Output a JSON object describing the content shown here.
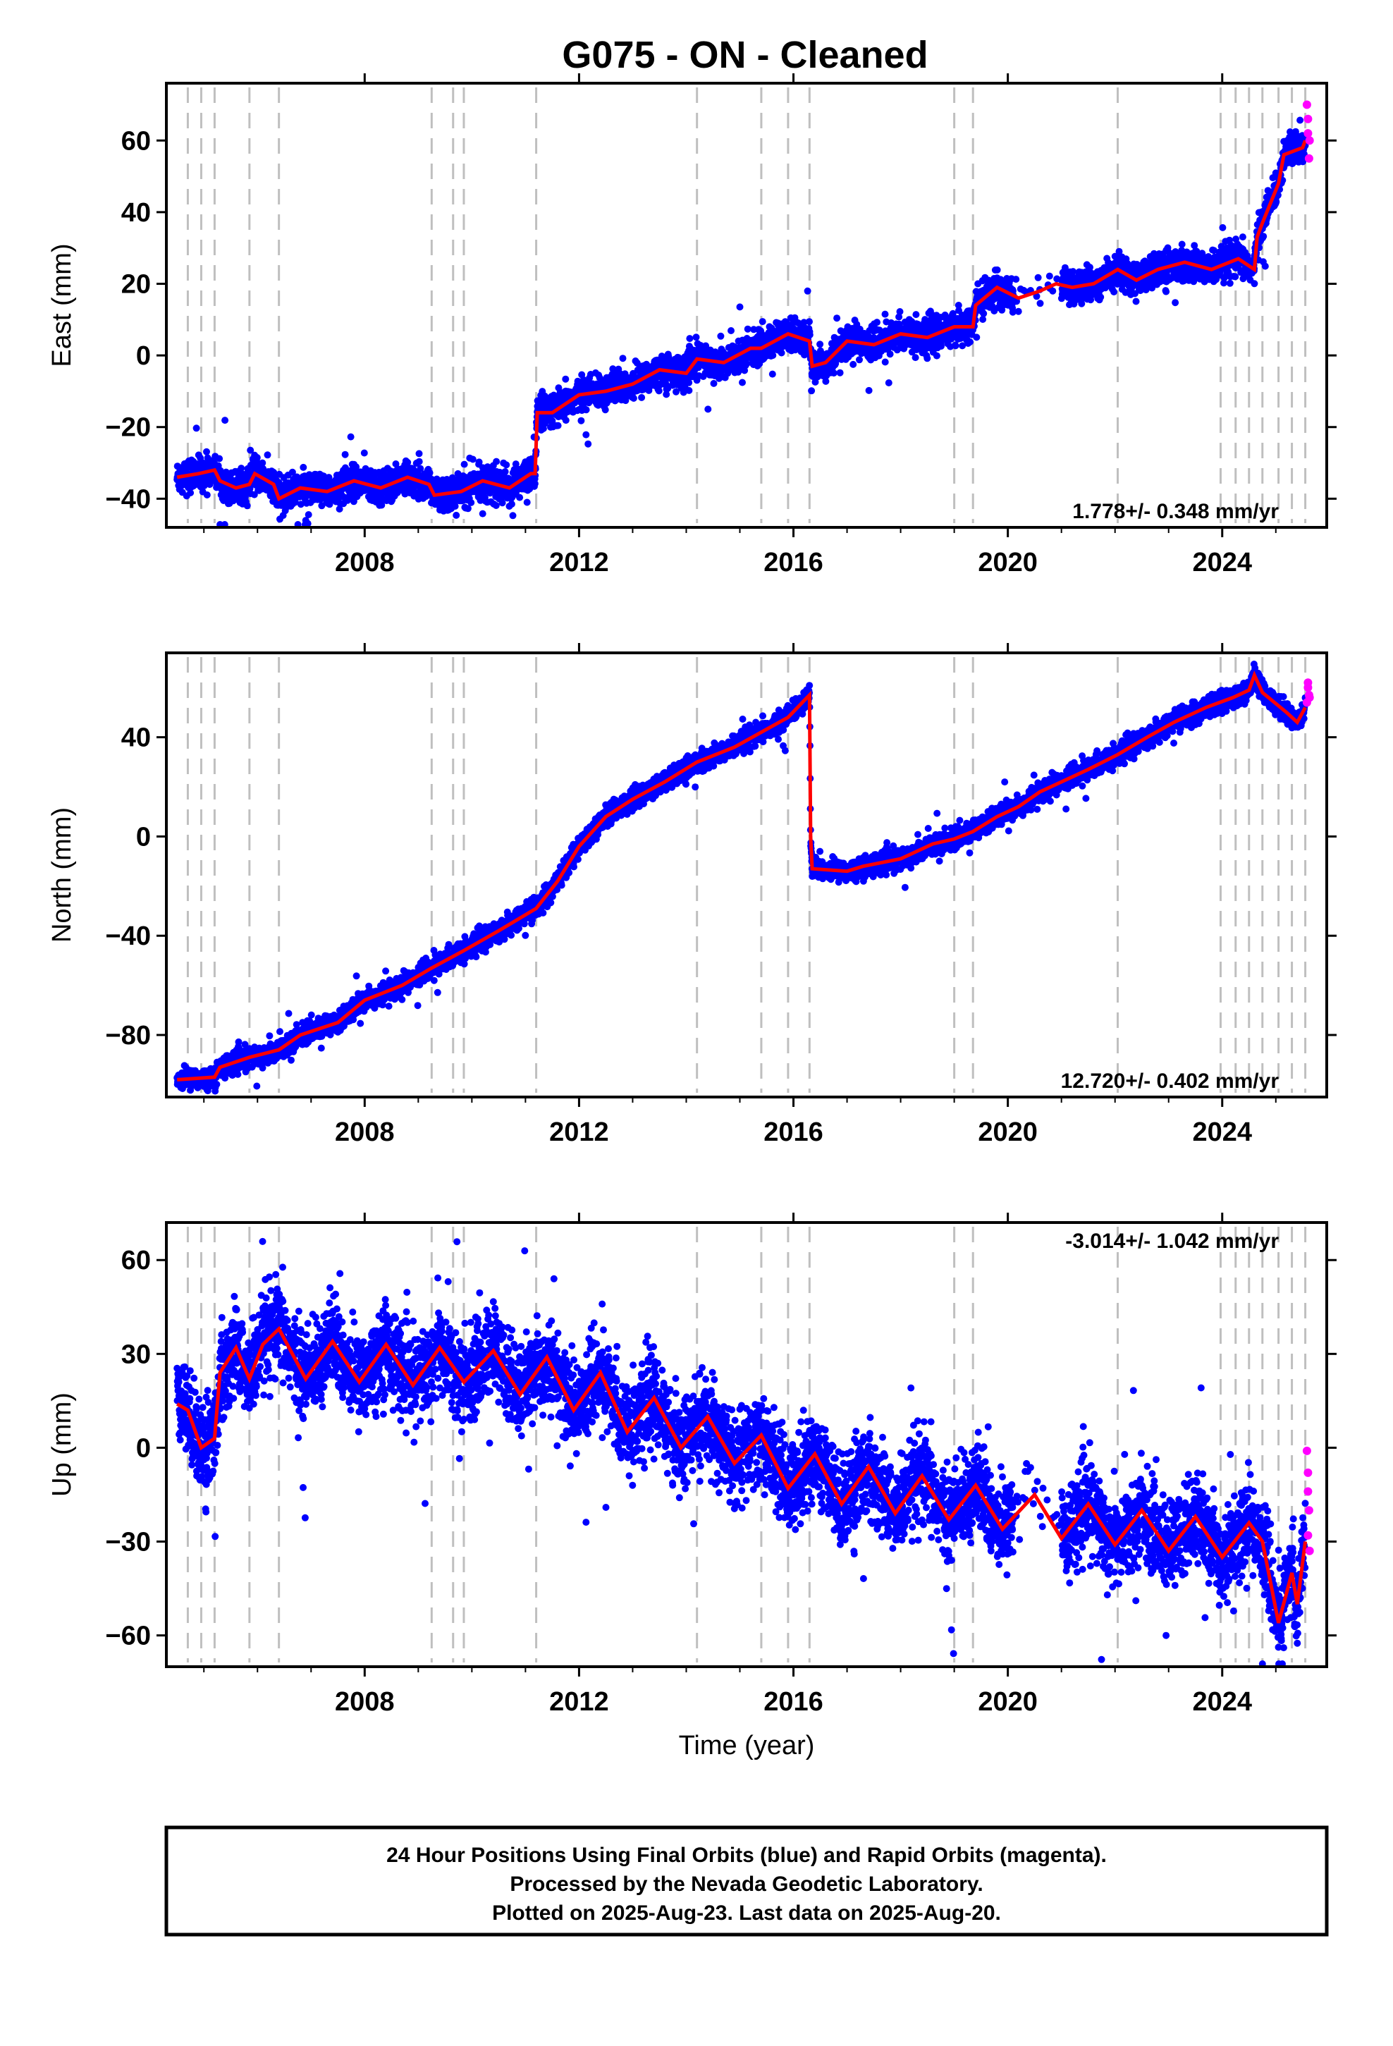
{
  "title": "G075  - ON - Cleaned",
  "xlabel": "Time (year)",
  "footer": {
    "line1": "24 Hour Positions Using Final Orbits (blue) and Rapid Orbits (magenta).",
    "line2": "Processed by the Nevada Geodetic Laboratory.",
    "line3": "Plotted on 2025-Aug-23. Last data on 2025-Aug-20."
  },
  "colors": {
    "final_orbits": "#0000ff",
    "rapid_orbits": "#ff00ff",
    "model_fit": "#ff0000",
    "event_lines": "#bfbfbf"
  },
  "chart_data": [
    {
      "type": "scatter",
      "name": "east",
      "ylabel": "East (mm)",
      "rate": "1.778+/- 0.348 mm/yr",
      "rate_position": "bottom-right",
      "xlim": [
        2004.3,
        2025.95
      ],
      "ylim": [
        -48,
        76
      ],
      "xticks": [
        2008,
        2012,
        2016,
        2020,
        2024
      ],
      "yticks": [
        -40,
        -20,
        0,
        20,
        40,
        60
      ],
      "grid": false,
      "event_lines": [
        2004.7,
        2004.95,
        2005.2,
        2005.85,
        2006.4,
        2009.25,
        2009.65,
        2009.85,
        2011.2,
        2014.2,
        2015.4,
        2015.9,
        2016.3,
        2019.0,
        2019.35,
        2022.05,
        2023.97,
        2024.25,
        2024.5,
        2024.75,
        2025.05,
        2025.3,
        2025.55
      ],
      "model": [
        [
          2004.5,
          -34
        ],
        [
          2004.9,
          -33
        ],
        [
          2005.2,
          -32
        ],
        [
          2005.3,
          -35
        ],
        [
          2005.6,
          -37
        ],
        [
          2005.85,
          -36
        ],
        [
          2005.95,
          -33
        ],
        [
          2006.3,
          -36
        ],
        [
          2006.4,
          -40
        ],
        [
          2006.8,
          -37
        ],
        [
          2007.3,
          -38
        ],
        [
          2007.8,
          -35
        ],
        [
          2008.3,
          -37
        ],
        [
          2008.8,
          -34
        ],
        [
          2009.2,
          -36
        ],
        [
          2009.3,
          -39
        ],
        [
          2009.8,
          -38
        ],
        [
          2010.2,
          -35
        ],
        [
          2010.7,
          -37
        ],
        [
          2011.1,
          -33
        ],
        [
          2011.18,
          -33
        ],
        [
          2011.22,
          -16
        ],
        [
          2011.5,
          -16
        ],
        [
          2012.0,
          -11
        ],
        [
          2012.5,
          -10
        ],
        [
          2013.0,
          -8
        ],
        [
          2013.5,
          -4
        ],
        [
          2014.0,
          -5
        ],
        [
          2014.2,
          -1
        ],
        [
          2014.7,
          -2
        ],
        [
          2015.2,
          2
        ],
        [
          2015.4,
          2
        ],
        [
          2015.9,
          6
        ],
        [
          2016.3,
          4
        ],
        [
          2016.35,
          -3
        ],
        [
          2016.6,
          -2
        ],
        [
          2017.0,
          4
        ],
        [
          2017.5,
          3
        ],
        [
          2018.0,
          6
        ],
        [
          2018.5,
          5
        ],
        [
          2019.0,
          8
        ],
        [
          2019.35,
          8
        ],
        [
          2019.4,
          14
        ],
        [
          2019.8,
          19
        ],
        [
          2020.2,
          16
        ],
        [
          2020.6,
          18
        ],
        [
          2020.9,
          20
        ],
        [
          2021.2,
          19
        ],
        [
          2021.6,
          20
        ],
        [
          2022.05,
          24
        ],
        [
          2022.4,
          21
        ],
        [
          2022.8,
          24
        ],
        [
          2023.3,
          26
        ],
        [
          2023.8,
          24
        ],
        [
          2024.3,
          27
        ],
        [
          2024.6,
          24
        ],
        [
          2024.65,
          33
        ],
        [
          2024.75,
          37
        ],
        [
          2025.05,
          48
        ],
        [
          2025.15,
          56
        ],
        [
          2025.5,
          58
        ],
        [
          2025.55,
          60
        ]
      ],
      "rapid": [
        [
          2025.58,
          70
        ],
        [
          2025.6,
          62
        ],
        [
          2025.62,
          55
        ],
        [
          2025.6,
          66
        ],
        [
          2025.63,
          60
        ]
      ],
      "scatter_sigma": 2.2
    },
    {
      "type": "scatter",
      "name": "north",
      "ylabel": "North (mm)",
      "rate": "12.720+/- 0.402 mm/yr",
      "rate_position": "bottom-right",
      "xlim": [
        2004.3,
        2025.95
      ],
      "ylim": [
        -105,
        74
      ],
      "xticks": [
        2008,
        2012,
        2016,
        2020,
        2024
      ],
      "yticks": [
        -80,
        -40,
        0,
        40
      ],
      "grid": false,
      "event_lines": [
        2004.7,
        2004.95,
        2005.2,
        2005.85,
        2006.4,
        2009.25,
        2009.65,
        2009.85,
        2011.2,
        2014.2,
        2015.4,
        2015.9,
        2016.3,
        2019.0,
        2019.35,
        2022.05,
        2023.97,
        2024.25,
        2024.5,
        2024.75,
        2025.05,
        2025.3,
        2025.55
      ],
      "model": [
        [
          2004.5,
          -98
        ],
        [
          2005.2,
          -97
        ],
        [
          2005.3,
          -93
        ],
        [
          2005.85,
          -89
        ],
        [
          2006.4,
          -86
        ],
        [
          2006.8,
          -80
        ],
        [
          2007.5,
          -75
        ],
        [
          2008.0,
          -66
        ],
        [
          2008.7,
          -60
        ],
        [
          2009.25,
          -53
        ],
        [
          2009.85,
          -46
        ],
        [
          2010.5,
          -38
        ],
        [
          2011.2,
          -29
        ],
        [
          2011.6,
          -18
        ],
        [
          2012.0,
          -4
        ],
        [
          2012.5,
          8
        ],
        [
          2013.0,
          15
        ],
        [
          2013.6,
          22
        ],
        [
          2014.2,
          30
        ],
        [
          2014.9,
          36
        ],
        [
          2015.4,
          42
        ],
        [
          2015.9,
          48
        ],
        [
          2016.3,
          57
        ],
        [
          2016.32,
          0
        ],
        [
          2016.35,
          -13
        ],
        [
          2017.0,
          -14
        ],
        [
          2017.3,
          -12
        ],
        [
          2018.0,
          -9
        ],
        [
          2018.6,
          -3
        ],
        [
          2019.0,
          -1
        ],
        [
          2019.35,
          2
        ],
        [
          2019.8,
          8
        ],
        [
          2020.2,
          12
        ],
        [
          2020.6,
          18
        ],
        [
          2021.0,
          22
        ],
        [
          2021.5,
          27
        ],
        [
          2022.05,
          33
        ],
        [
          2022.6,
          40
        ],
        [
          2023.1,
          46
        ],
        [
          2023.7,
          52
        ],
        [
          2024.2,
          56
        ],
        [
          2024.5,
          59
        ],
        [
          2024.6,
          65
        ],
        [
          2024.75,
          58
        ],
        [
          2025.2,
          50
        ],
        [
          2025.4,
          46
        ],
        [
          2025.55,
          52
        ]
      ],
      "rapid": [
        [
          2025.58,
          54
        ],
        [
          2025.6,
          60
        ],
        [
          2025.62,
          57
        ],
        [
          2025.6,
          62
        ],
        [
          2025.63,
          56
        ]
      ],
      "scatter_sigma": 2.0
    },
    {
      "type": "scatter",
      "name": "up",
      "ylabel": "Up (mm)",
      "rate": "-3.014+/- 1.042 mm/yr",
      "rate_position": "top-right",
      "xlim": [
        2004.3,
        2025.95
      ],
      "ylim": [
        -70,
        72
      ],
      "xticks": [
        2008,
        2012,
        2016,
        2020,
        2024
      ],
      "yticks": [
        -60,
        -30,
        0,
        30,
        60
      ],
      "grid": false,
      "event_lines": [
        2004.7,
        2004.95,
        2005.2,
        2005.85,
        2006.4,
        2009.25,
        2009.65,
        2009.85,
        2011.2,
        2014.2,
        2015.4,
        2015.9,
        2016.3,
        2019.0,
        2019.35,
        2022.05,
        2023.97,
        2024.25,
        2024.5,
        2024.75,
        2025.05,
        2025.3,
        2025.55
      ],
      "model": [
        [
          2004.5,
          14
        ],
        [
          2004.7,
          12
        ],
        [
          2004.95,
          0
        ],
        [
          2005.2,
          3
        ],
        [
          2005.3,
          24
        ],
        [
          2005.6,
          32
        ],
        [
          2005.85,
          22
        ],
        [
          2006.1,
          33
        ],
        [
          2006.4,
          38
        ],
        [
          2006.9,
          22
        ],
        [
          2007.4,
          34
        ],
        [
          2007.9,
          21
        ],
        [
          2008.4,
          33
        ],
        [
          2008.9,
          20
        ],
        [
          2009.4,
          32
        ],
        [
          2009.85,
          21
        ],
        [
          2010.4,
          31
        ],
        [
          2010.9,
          17
        ],
        [
          2011.4,
          29
        ],
        [
          2011.9,
          12
        ],
        [
          2012.4,
          24
        ],
        [
          2012.9,
          5
        ],
        [
          2013.4,
          16
        ],
        [
          2013.9,
          0
        ],
        [
          2014.4,
          10
        ],
        [
          2014.9,
          -5
        ],
        [
          2015.4,
          4
        ],
        [
          2015.9,
          -13
        ],
        [
          2016.4,
          -2
        ],
        [
          2016.9,
          -18
        ],
        [
          2017.4,
          -6
        ],
        [
          2017.9,
          -21
        ],
        [
          2018.4,
          -9
        ],
        [
          2018.9,
          -23
        ],
        [
          2019.4,
          -12
        ],
        [
          2019.9,
          -26
        ],
        [
          2020.5,
          -15
        ],
        [
          2021.0,
          -29
        ],
        [
          2021.5,
          -18
        ],
        [
          2022.0,
          -31
        ],
        [
          2022.5,
          -20
        ],
        [
          2023.0,
          -33
        ],
        [
          2023.5,
          -22
        ],
        [
          2024.0,
          -35
        ],
        [
          2024.5,
          -24
        ],
        [
          2024.75,
          -30
        ],
        [
          2025.05,
          -56
        ],
        [
          2025.3,
          -40
        ],
        [
          2025.4,
          -50
        ],
        [
          2025.55,
          -30
        ]
      ],
      "rapid": [
        [
          2025.58,
          -1
        ],
        [
          2025.6,
          -8
        ],
        [
          2025.62,
          -20
        ],
        [
          2025.6,
          -28
        ],
        [
          2025.63,
          -33
        ],
        [
          2025.6,
          -14
        ]
      ],
      "scatter_sigma": 7.0
    }
  ]
}
